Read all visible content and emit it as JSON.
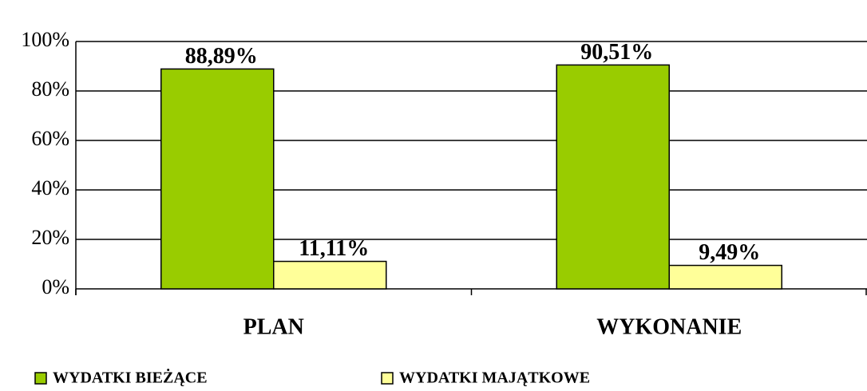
{
  "chart_data": {
    "type": "bar",
    "categories": [
      "PLAN",
      "WYKONANIE"
    ],
    "series": [
      {
        "name": "WYDATKI BIEŻĄCE",
        "color": "#99cc00",
        "values": [
          88.89,
          90.51
        ],
        "value_labels": [
          "88,89%",
          "90,51%"
        ]
      },
      {
        "name": "WYDATKI MAJĄTKOWE",
        "color": "#ffff99",
        "values": [
          11.11,
          9.49
        ],
        "value_labels": [
          "11,11%",
          "9,49%"
        ]
      }
    ],
    "ylim": [
      0,
      100
    ],
    "yticks": [
      {
        "value": 0,
        "label": "0%"
      },
      {
        "value": 20,
        "label": "20%"
      },
      {
        "value": 40,
        "label": "40%"
      },
      {
        "value": 60,
        "label": "60%"
      },
      {
        "value": 80,
        "label": "80%"
      },
      {
        "value": 100,
        "label": "100%"
      }
    ],
    "grid": true,
    "legend": "bottom"
  }
}
